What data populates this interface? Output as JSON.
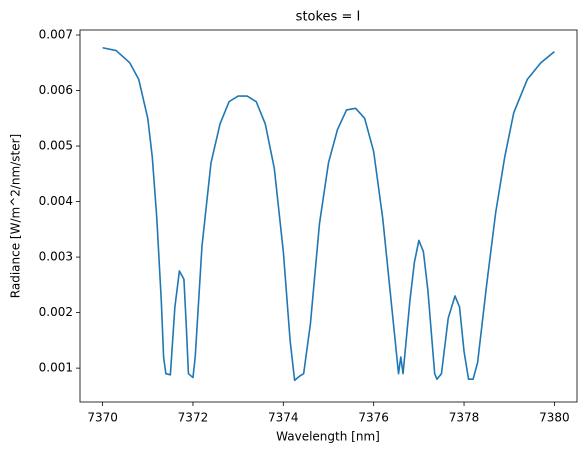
{
  "chart_data": {
    "type": "line",
    "title": "stokes = I",
    "x_label": "Wavelength [nm]",
    "y_label": "Radiance [W/m^2/nm/ster]",
    "xlim": [
      7369.5,
      7380.5
    ],
    "xticks": [
      7370,
      7372,
      7374,
      7376,
      7378,
      7380
    ],
    "ylim": [
      0.00039,
      0.00709
    ],
    "yticks": [
      0.001,
      0.002,
      0.003,
      0.004,
      0.005,
      0.006,
      0.007
    ],
    "grid": false,
    "series": [
      {
        "name": "I",
        "color": "#1f77b4",
        "x": [
          7370.0,
          7370.3,
          7370.6,
          7370.8,
          7371.0,
          7371.1,
          7371.2,
          7371.3,
          7371.35,
          7371.4,
          7371.5,
          7371.6,
          7371.7,
          7371.8,
          7371.85,
          7371.9,
          7372.0,
          7372.05,
          7372.2,
          7372.4,
          7372.6,
          7372.8,
          7373.0,
          7373.2,
          7373.4,
          7373.6,
          7373.8,
          7374.0,
          7374.15,
          7374.25,
          7374.35,
          7374.45,
          7374.6,
          7374.8,
          7375.0,
          7375.2,
          7375.4,
          7375.6,
          7375.8,
          7376.0,
          7376.2,
          7376.4,
          7376.55,
          7376.6,
          7376.65,
          7376.8,
          7376.9,
          7377.0,
          7377.1,
          7377.2,
          7377.35,
          7377.4,
          7377.5,
          7377.65,
          7377.8,
          7377.9,
          7378.0,
          7378.1,
          7378.2,
          7378.3,
          7378.5,
          7378.7,
          7378.9,
          7379.1,
          7379.4,
          7379.7,
          7380.0
        ],
        "values": [
          0.00677,
          0.00672,
          0.0065,
          0.0062,
          0.0055,
          0.0048,
          0.0037,
          0.0022,
          0.0012,
          0.0009,
          0.00088,
          0.0021,
          0.00275,
          0.0026,
          0.0018,
          0.0009,
          0.00083,
          0.0012,
          0.0032,
          0.0047,
          0.0054,
          0.0058,
          0.0059,
          0.0059,
          0.0058,
          0.0054,
          0.0046,
          0.0031,
          0.0015,
          0.00078,
          0.00085,
          0.0009,
          0.0018,
          0.0036,
          0.0047,
          0.0053,
          0.00565,
          0.00568,
          0.0055,
          0.0049,
          0.0037,
          0.0021,
          0.0009,
          0.0012,
          0.0009,
          0.0022,
          0.0029,
          0.0033,
          0.0031,
          0.0024,
          0.0009,
          0.0008,
          0.0009,
          0.0019,
          0.0023,
          0.0021,
          0.0013,
          0.0008,
          0.0008,
          0.0011,
          0.0025,
          0.0038,
          0.0048,
          0.0056,
          0.0062,
          0.0065,
          0.0067
        ]
      }
    ]
  }
}
